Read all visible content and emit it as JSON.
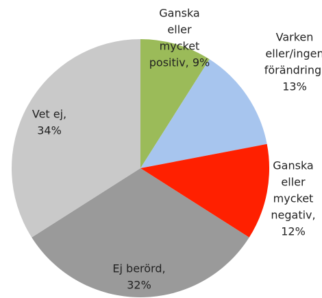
{
  "chart_data": {
    "type": "pie",
    "values": [
      9,
      13,
      12,
      32,
      34
    ],
    "labels": [
      [
        "Ganska",
        "eller",
        "mycket",
        "positiv, 9%"
      ],
      [
        "Varken",
        "eller/ingen",
        "förändring,",
        "13%"
      ],
      [
        "Ganska",
        "eller",
        "mycket",
        "negativ,",
        "12%"
      ],
      [
        "Ej berörd,",
        "32%"
      ],
      [
        "Vet ej,",
        "34%"
      ]
    ],
    "colors": [
      "#9bbb59",
      "#a7c5ee",
      "#ff2000",
      "#9a9a9a",
      "#c9c9c9"
    ]
  }
}
